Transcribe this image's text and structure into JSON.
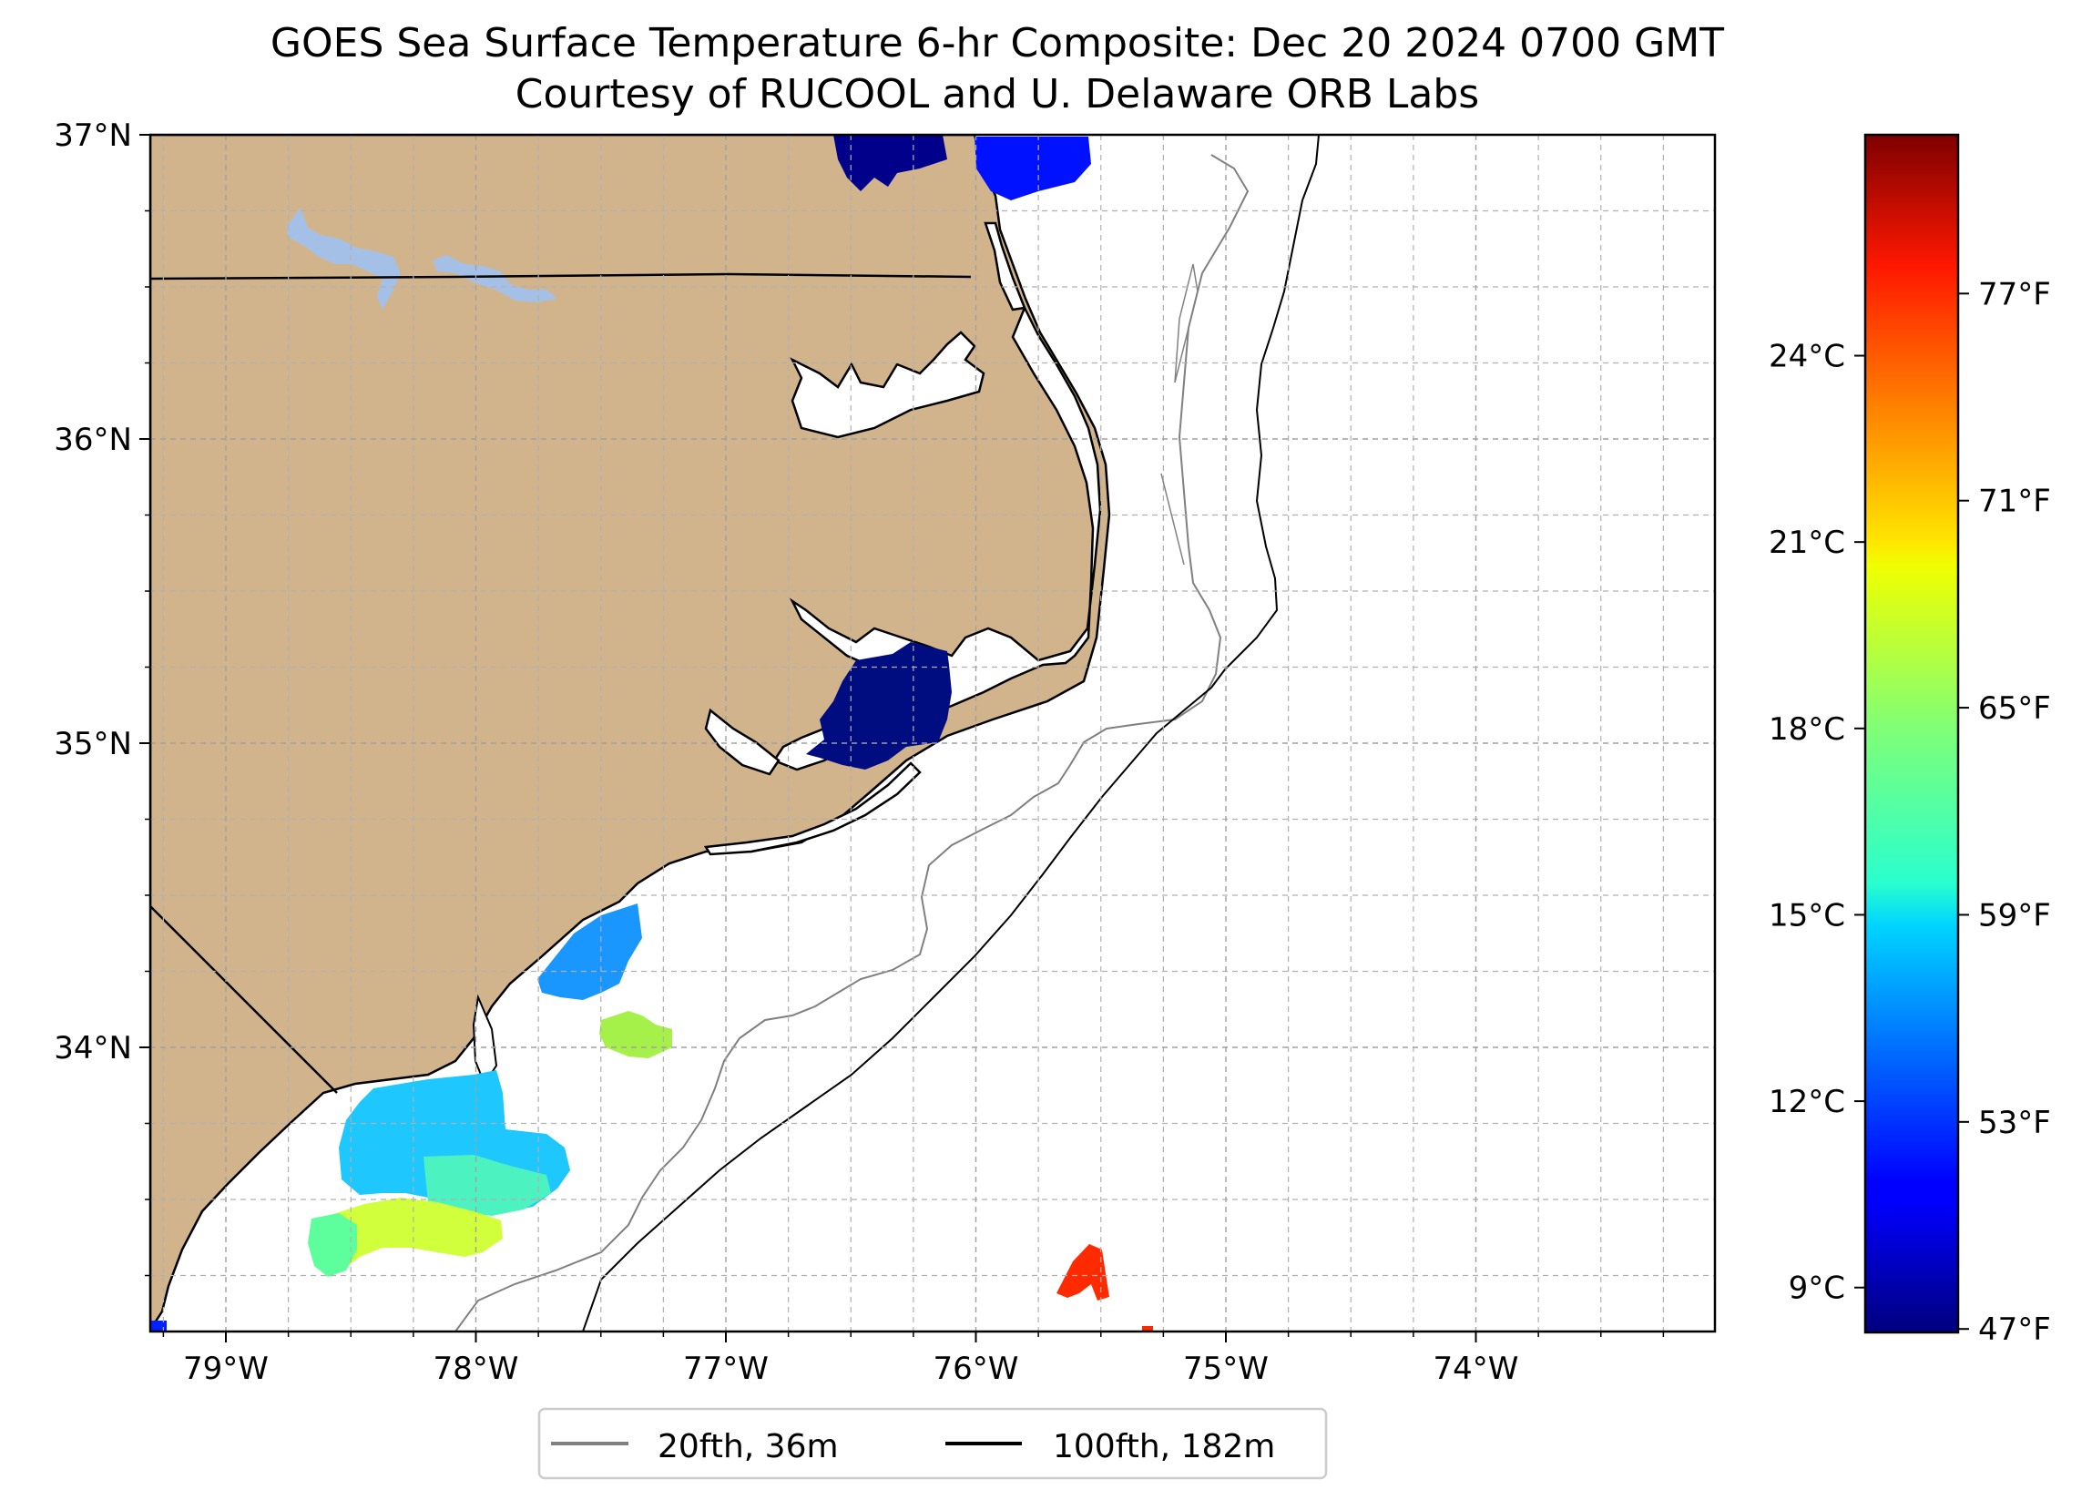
{
  "title": "GOES Sea Surface Temperature 6-hr Composite: Dec 20 2024 0700 GMT",
  "subtitle": "Courtesy of RUCOOL and U. Delaware ORB Labs",
  "map": {
    "lon_ticks": [
      {
        "value": -79,
        "label": "79°W"
      },
      {
        "value": -78,
        "label": "78°W"
      },
      {
        "value": -77,
        "label": "77°W"
      },
      {
        "value": -76,
        "label": "76°W"
      },
      {
        "value": -75,
        "label": "75°W"
      },
      {
        "value": -74,
        "label": "74°W"
      }
    ],
    "lat_ticks": [
      {
        "value": 37,
        "label": "37°N"
      },
      {
        "value": 36,
        "label": "36°N"
      },
      {
        "value": 35,
        "label": "35°N"
      },
      {
        "value": 34,
        "label": "34°N"
      }
    ],
    "land_color": "#d2b48c",
    "water_color": "#a4c0e6",
    "grid": true
  },
  "legend": {
    "placement": "bottom-center",
    "items": [
      {
        "label": "20fth, 36m",
        "color": "#808080"
      },
      {
        "label": "100fth, 182m",
        "color": "#000000"
      }
    ]
  },
  "colorbar": {
    "colormap": "jet",
    "celsius_ticks": [
      {
        "value": 9,
        "label": "9°C"
      },
      {
        "value": 12,
        "label": "12°C"
      },
      {
        "value": 15,
        "label": "15°C"
      },
      {
        "value": 18,
        "label": "18°C"
      },
      {
        "value": 21,
        "label": "21°C"
      },
      {
        "value": 24,
        "label": "24°C"
      }
    ],
    "fahrenheit_ticks": [
      {
        "value": 47,
        "label": "47°F"
      },
      {
        "value": 53,
        "label": "53°F"
      },
      {
        "value": 59,
        "label": "59°F"
      },
      {
        "value": 65,
        "label": "65°F"
      },
      {
        "value": 71,
        "label": "71°F"
      },
      {
        "value": 77,
        "label": "77°F"
      }
    ]
  }
}
